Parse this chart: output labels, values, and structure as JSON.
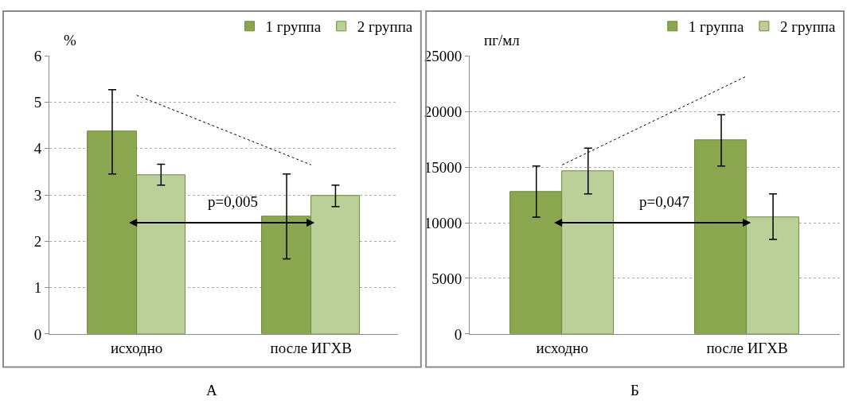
{
  "chart_data": [
    {
      "type": "bar",
      "title": "А",
      "ylabel": "%",
      "categories": [
        "исходно",
        "после ИГХВ"
      ],
      "ylim": [
        0,
        6
      ],
      "yticks": [
        0,
        1,
        2,
        3,
        4,
        5,
        6
      ],
      "grid": "y",
      "legend": "top right",
      "series": [
        {
          "name": "1 группа",
          "color": "#8aa64e",
          "values": [
            4.37,
            2.53
          ],
          "errors": [
            [
              3.45,
              5.27
            ],
            [
              1.62,
              3.45
            ]
          ]
        },
        {
          "name": "2 группа",
          "color": "#bad098",
          "values": [
            3.43,
            2.98
          ],
          "errors": [
            [
              3.21,
              3.66
            ],
            [
              2.75,
              3.21
            ]
          ]
        },
        {
          "type": "line",
          "color": "#000000",
          "line_style": "dotted",
          "values": [
            5.15,
            3.65
          ]
        }
      ],
      "annotations": [
        "p=0,005"
      ]
    },
    {
      "type": "bar",
      "title": "Б",
      "ylabel": "пг/мл",
      "categories": [
        "исходно",
        "после ИГХВ"
      ],
      "ylim": [
        0,
        25000
      ],
      "yticks": [
        0,
        5000,
        10000,
        15000,
        20000,
        25000
      ],
      "grid": "y",
      "legend": "top right",
      "series": [
        {
          "name": "1 группа",
          "color": "#8aa64e",
          "values": [
            12800,
            17400
          ],
          "errors": [
            [
              10500,
              15100
            ],
            [
              15100,
              19700
            ]
          ]
        },
        {
          "name": "2 группа",
          "color": "#bad098",
          "values": [
            14600,
            10500
          ],
          "errors": [
            [
              12600,
              16700
            ],
            [
              8500,
              12600
            ]
          ]
        },
        {
          "type": "line",
          "color": "#000000",
          "line_style": "dotted",
          "values": [
            15200,
            23200
          ]
        }
      ],
      "annotations": [
        "p=0,047"
      ]
    }
  ]
}
